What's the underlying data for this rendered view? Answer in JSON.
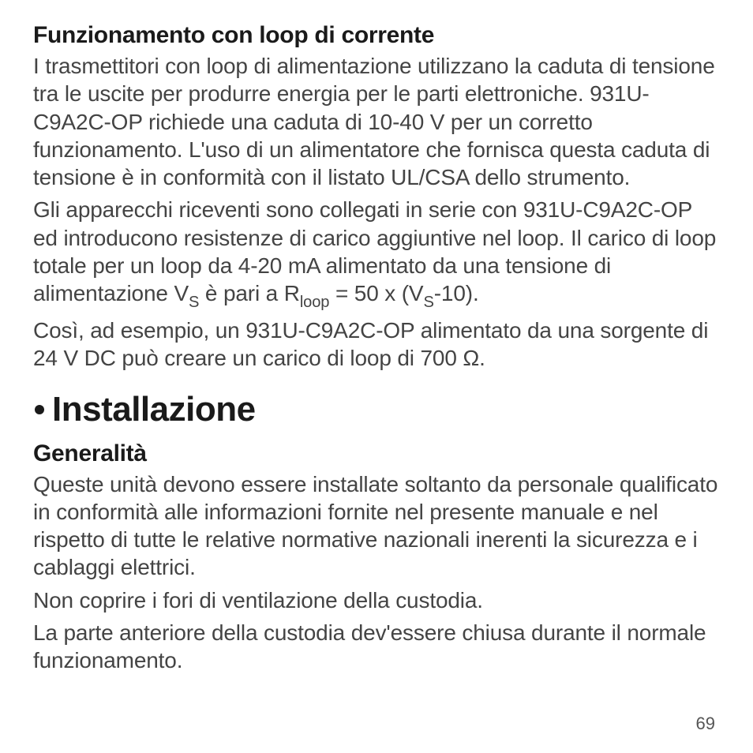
{
  "page": {
    "number": "69",
    "background_color": "#ffffff",
    "text_color": "#444444",
    "heading_color": "#1a1a1a"
  },
  "typography": {
    "body_fontsize_pt": 21,
    "subheading_fontsize_pt": 22,
    "section_heading_fontsize_pt": 33,
    "page_number_fontsize_pt": 16,
    "body_font": "Helvetica/Arial",
    "heading_font": "Arial Narrow (condensed)",
    "heading_weight": 700,
    "body_weight": 400
  },
  "section1": {
    "heading": "Funzionamento con loop di corrente",
    "p1": "I trasmettitori con loop di alimentazione utilizzano la caduta di tensione tra le uscite per produrre energia per le parti elettroniche. 931U-C9A2C-OP richiede una caduta di 10-40 V per un corretto funzionamento. L'uso di un alimentatore che fornisca questa caduta di tensione è in conformità con il listato UL/CSA dello strumento.",
    "p2_a": "Gli apparecchi riceventi sono collegati in serie con 931U-C9A2C-OP ed introducono resistenze di carico aggiuntive nel loop. Il carico di loop totale per un loop da 4-20 mA alimentato da una tensione di alimentazione V",
    "p2_sub1": "S",
    "p2_b": " è pari a R",
    "p2_sub2": "loop",
    "p2_c": " = 50 x (V",
    "p2_sub3": "S",
    "p2_d": "-10).",
    "p3": "Così, ad esempio, un 931U-C9A2C-OP alimentato da una sorgente di 24 V DC può creare un carico di loop di 700 Ω."
  },
  "section2": {
    "heading": "Installazione",
    "sub_heading": "Generalità",
    "p1": "Queste unità devono essere installate soltanto da personale qualificato in conformità alle informazioni fornite nel presente manuale e nel rispetto di tutte le relative normative nazionali inerenti la sicurezza e i cablaggi elettrici.",
    "p2": "Non coprire i fori di ventilazione della custodia.",
    "p3": "La parte anteriore della custodia dev'essere chiusa durante il normale funzionamento."
  }
}
